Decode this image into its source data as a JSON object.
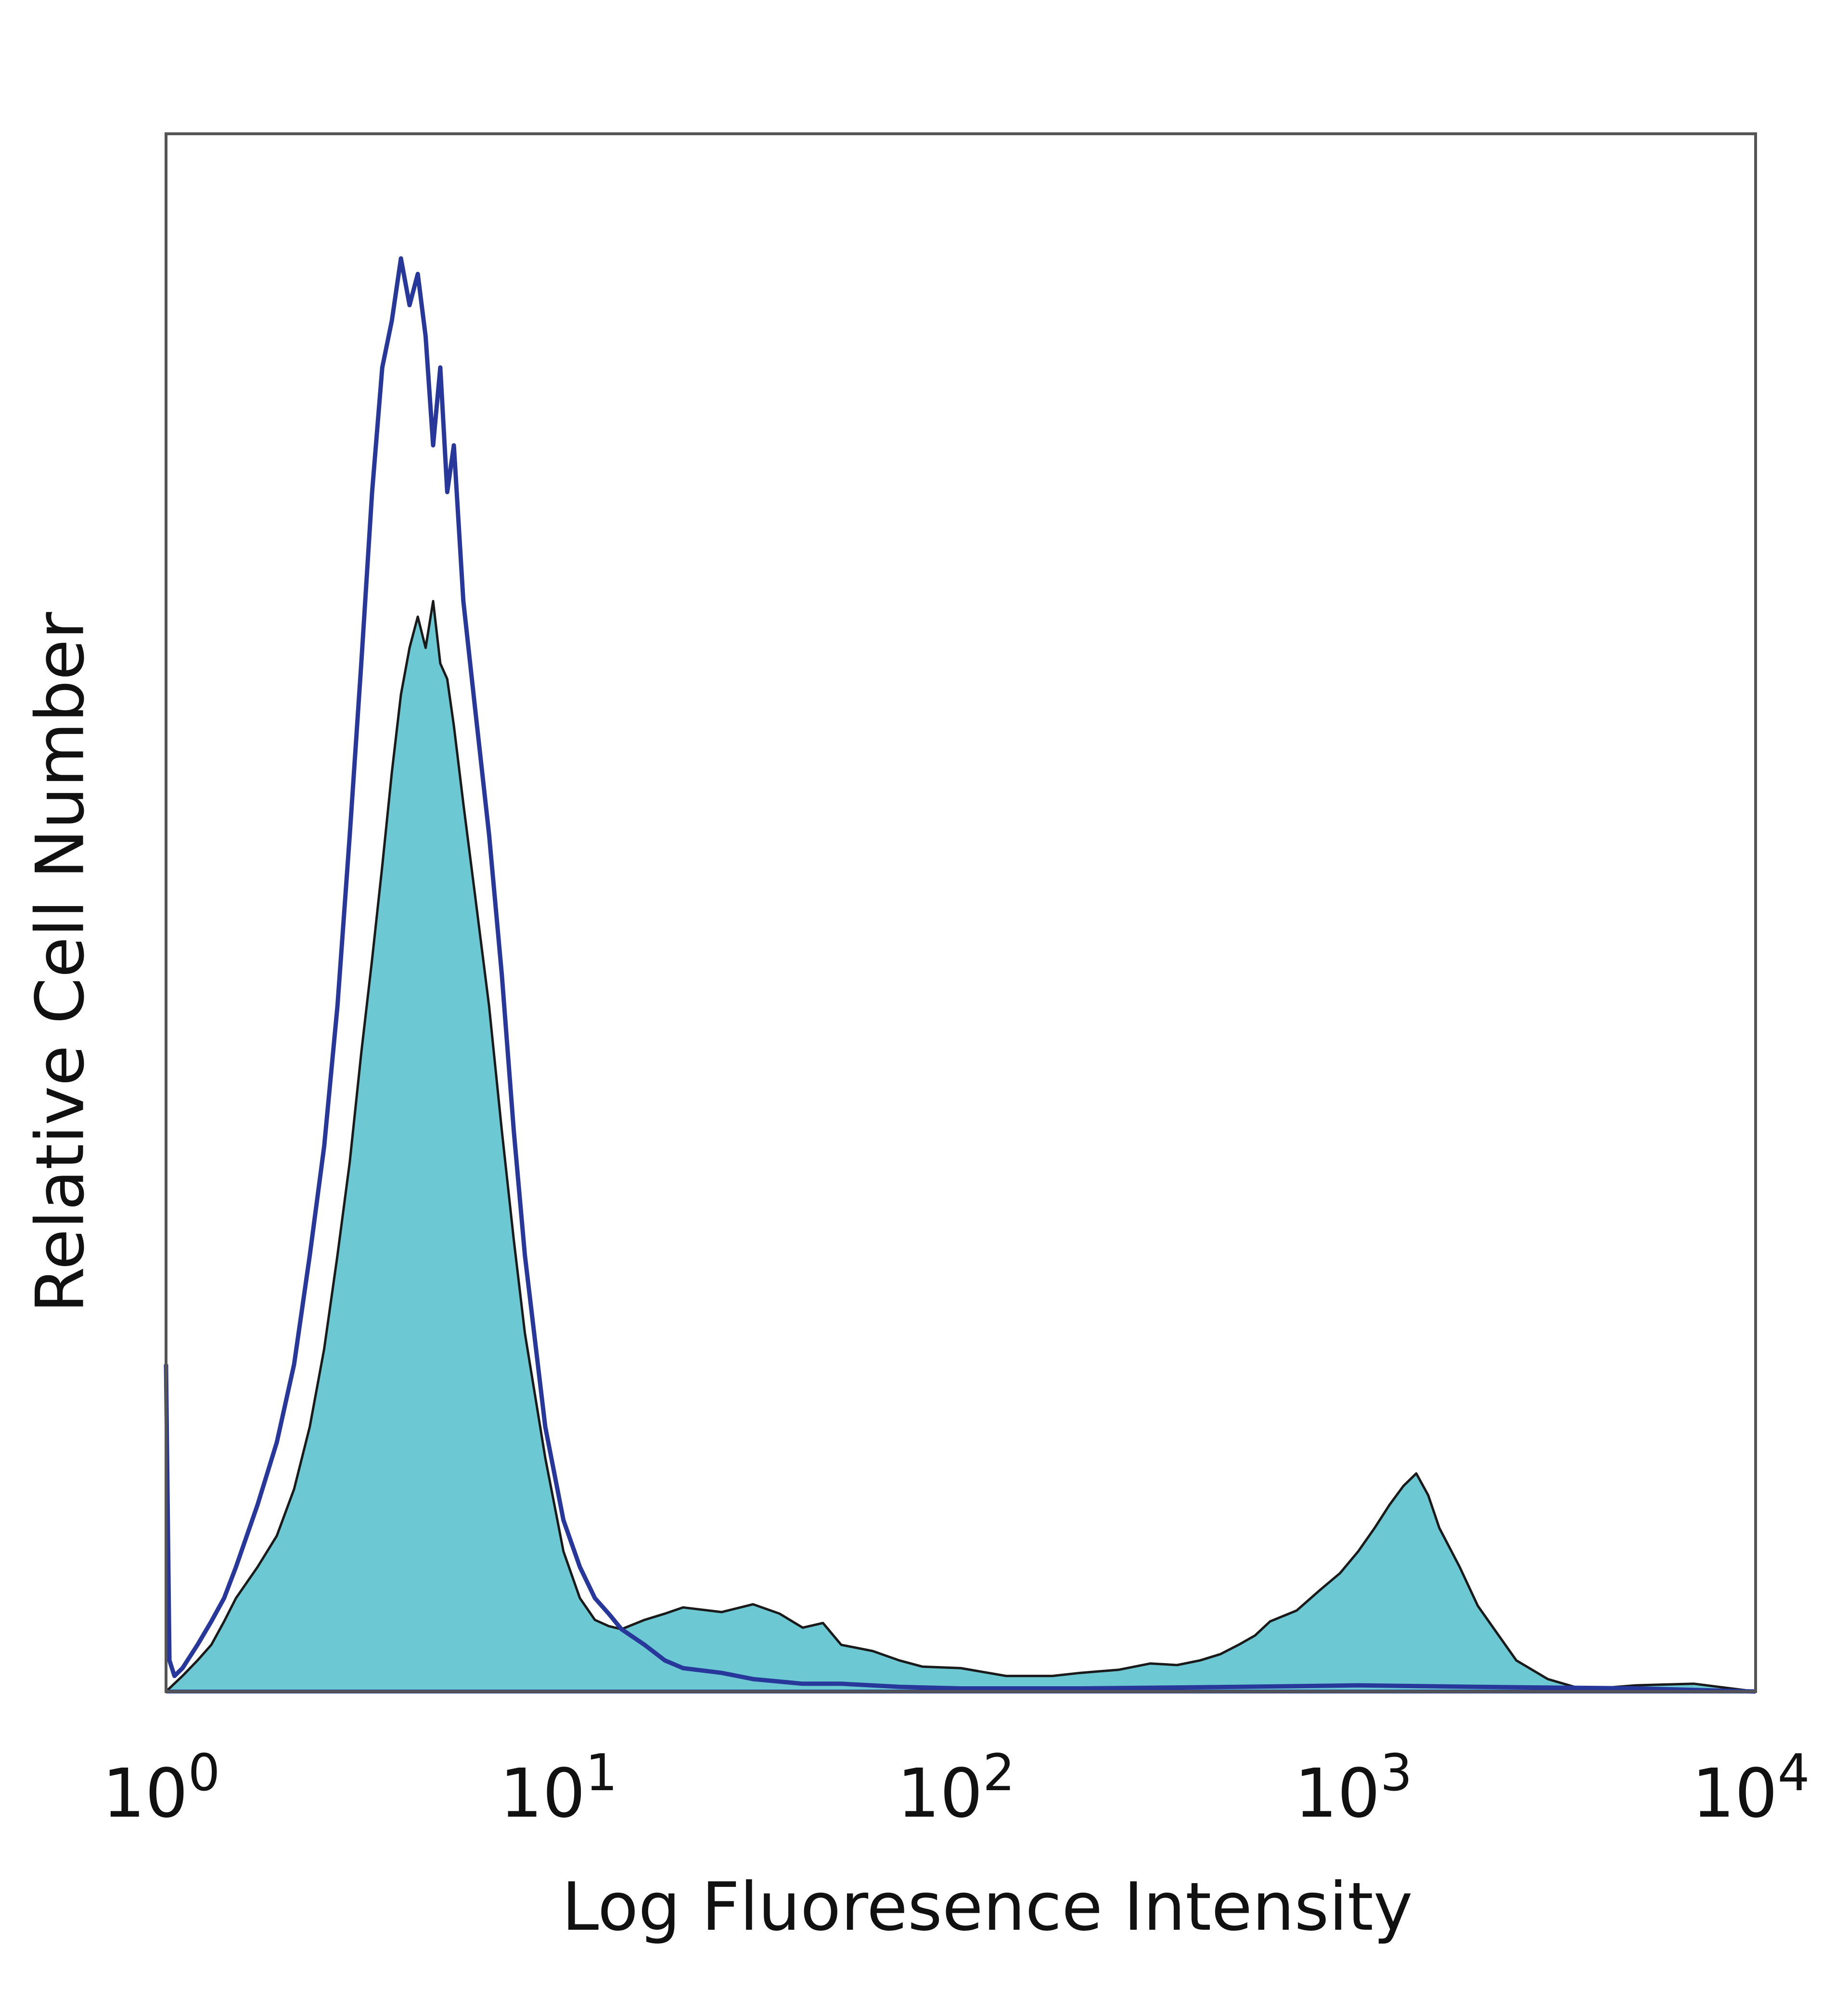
{
  "chart_data": {
    "type": "area",
    "title": "",
    "xlabel": "Log Fluoresence Intensity",
    "ylabel": "Relative Cell Number",
    "x_scale": "log",
    "xlim": [
      1,
      10000
    ],
    "ylim": [
      0,
      100
    ],
    "grid": false,
    "legend": "none",
    "x_ticks": [
      {
        "value": 1,
        "base": "10",
        "exp": "0"
      },
      {
        "value": 10,
        "base": "10",
        "exp": "1"
      },
      {
        "value": 100,
        "base": "10",
        "exp": "2"
      },
      {
        "value": 1000,
        "base": "10",
        "exp": "3"
      },
      {
        "value": 10000,
        "base": "10",
        "exp": "4"
      }
    ],
    "series": [
      {
        "style": "filled",
        "fill_color": "#6cc8d2",
        "line_color": "#1a1a1a",
        "x": [
          1.0,
          1.1,
          1.2,
          1.3,
          1.4,
          1.5,
          1.7,
          1.9,
          2.1,
          2.3,
          2.5,
          2.7,
          2.9,
          3.1,
          3.3,
          3.5,
          3.7,
          3.9,
          4.1,
          4.3,
          4.5,
          4.7,
          4.9,
          5.1,
          5.3,
          5.6,
          6.0,
          6.5,
          7.0,
          7.5,
          8.0,
          9.0,
          10.0,
          11.0,
          12.0,
          13.0,
          14.0,
          16.0,
          18.0,
          20.0,
          25.0,
          30.0,
          35.0,
          40.0,
          45.0,
          50.0,
          60.0,
          70.0,
          80.0,
          100.0,
          130.0,
          170.0,
          200.0,
          250.0,
          300.0,
          350.0,
          400.0,
          450.0,
          500.0,
          550.0,
          600.0,
          700.0,
          800.0,
          900.0,
          1000.0,
          1100.0,
          1200.0,
          1300.0,
          1400.0,
          1500.0,
          1600.0,
          1800.0,
          2000.0,
          2200.0,
          2500.0,
          3000.0,
          3500.0,
          4000.0,
          5000.0,
          7000.0,
          10000.0
        ],
        "y": [
          0.0,
          1.0,
          2.0,
          3.0,
          4.5,
          6.0,
          8.0,
          10.0,
          13.0,
          17.0,
          22.0,
          28.0,
          34.0,
          41.0,
          47.0,
          53.0,
          59.0,
          64.0,
          67.0,
          69.0,
          67.0,
          70.0,
          66.0,
          65.0,
          62.0,
          57.0,
          51.0,
          44.0,
          36.0,
          29.0,
          23.0,
          15.0,
          9.0,
          6.0,
          4.6,
          4.2,
          4.0,
          4.6,
          5.0,
          5.4,
          5.1,
          5.6,
          5.0,
          4.1,
          4.4,
          3.0,
          2.6,
          2.0,
          1.6,
          1.5,
          1.0,
          1.0,
          1.2,
          1.4,
          1.8,
          1.7,
          2.0,
          2.4,
          3.0,
          3.6,
          4.5,
          5.2,
          6.5,
          7.6,
          9.0,
          10.5,
          12.0,
          13.2,
          14.0,
          12.6,
          10.5,
          8.0,
          5.5,
          4.0,
          2.0,
          0.8,
          0.3,
          0.2,
          0.4,
          0.5,
          0.0
        ]
      },
      {
        "style": "outline",
        "line_color": "#27389a",
        "x": [
          1.0,
          1.02,
          1.05,
          1.1,
          1.2,
          1.3,
          1.4,
          1.5,
          1.7,
          1.9,
          2.1,
          2.3,
          2.5,
          2.7,
          2.9,
          3.1,
          3.3,
          3.5,
          3.7,
          3.9,
          4.1,
          4.3,
          4.5,
          4.7,
          4.9,
          5.1,
          5.3,
          5.6,
          6.0,
          6.5,
          7.0,
          7.5,
          8.0,
          9.0,
          10.0,
          11.0,
          12.0,
          13.0,
          14.0,
          16.0,
          18.0,
          20.0,
          25.0,
          30.0,
          40.0,
          50.0,
          70.0,
          100.0,
          200.0,
          500.0,
          1000.0,
          2000.0,
          5000.0,
          10000.0
        ],
        "y": [
          21.0,
          2.0,
          1.0,
          1.5,
          3.0,
          4.5,
          6.0,
          8.0,
          12.0,
          16.0,
          21.0,
          28.0,
          35.0,
          44.0,
          55.0,
          66.0,
          77.0,
          85.0,
          88.0,
          92.0,
          89.0,
          91.0,
          87.0,
          80.0,
          85.0,
          77.0,
          80.0,
          70.0,
          63.0,
          55.0,
          46.0,
          36.0,
          28.0,
          17.0,
          11.0,
          8.0,
          6.0,
          5.0,
          4.0,
          3.0,
          2.0,
          1.5,
          1.2,
          0.8,
          0.5,
          0.5,
          0.3,
          0.2,
          0.2,
          0.3,
          0.4,
          0.3,
          0.2,
          0.0
        ]
      }
    ]
  }
}
